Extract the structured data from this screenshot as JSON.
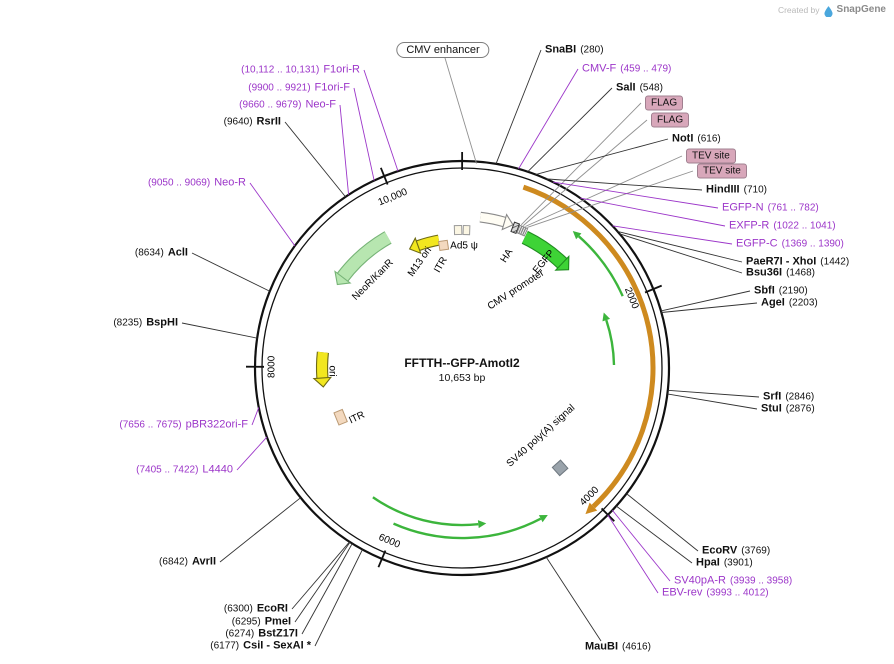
{
  "watermark": {
    "created_by": "Created by",
    "brand": "SnapGene"
  },
  "plasmid": {
    "title": "FFTTH--GFP-AmotI2",
    "size": "10,653 bp"
  },
  "badge_labels": {
    "cmv_enhancer": "CMV enhancer"
  },
  "ticks": [
    "2000",
    "4000",
    "6000",
    "8000",
    "10,000"
  ],
  "features": {
    "neor_kanr": "NeoR/KanR",
    "m13_ori": "M13 ori",
    "itr_top": "ITR",
    "ad5_psi": "Ad5 ψ",
    "ha": "HA",
    "egfp": "EGFP",
    "cmv_promoter": "CMV promoter",
    "ori": "ori",
    "itr_left": "ITR",
    "sv40_polya": "SV40 poly(A) signal"
  },
  "colors": {
    "primer": "#9c36c9",
    "enzyme": "#1a1a1a",
    "orange_arc": "#ce8a1f",
    "egfp_green": "#3ed336",
    "pale_green": "#b7e6b0",
    "yellow": "#f2e71f"
  },
  "callouts_left": [
    {
      "pos": "(10,112 .. 10,131)",
      "name": "F1ori-R",
      "kind": "primer"
    },
    {
      "pos": "(9900 .. 9921)",
      "name": "F1ori-F",
      "kind": "primer"
    },
    {
      "pos": "(9660 .. 9679)",
      "name": "Neo-F",
      "kind": "primer"
    },
    {
      "pos": "(9640)",
      "name": "RsrII",
      "kind": "enzyme"
    },
    {
      "pos": "(9050 .. 9069)",
      "name": "Neo-R",
      "kind": "primer"
    },
    {
      "pos": "(8634)",
      "name": "AclI",
      "kind": "enzyme"
    },
    {
      "pos": "(8235)",
      "name": "BspHI",
      "kind": "enzyme"
    },
    {
      "pos": "(7656 .. 7675)",
      "name": "pBR322ori-F",
      "kind": "primer"
    },
    {
      "pos": "(7405 .. 7422)",
      "name": "L4440",
      "kind": "primer"
    },
    {
      "pos": "(6842)",
      "name": "AvrII",
      "kind": "enzyme"
    },
    {
      "pos": "(6300)",
      "name": "EcoRI",
      "kind": "enzyme"
    },
    {
      "pos": "(6295)",
      "name": "PmeI",
      "kind": "enzyme"
    },
    {
      "pos": "(6274)",
      "name": "BstZ17I",
      "kind": "enzyme"
    },
    {
      "pos": "(6177)",
      "name": "CsiI - SexAI *",
      "kind": "enzyme"
    }
  ],
  "callouts_right": [
    {
      "name": "SnaBI",
      "pos": "(280)",
      "kind": "enzyme"
    },
    {
      "name": "CMV-F",
      "pos": "(459 .. 479)",
      "kind": "primer"
    },
    {
      "name": "SalI",
      "pos": "(548)",
      "kind": "enzyme"
    },
    {
      "name": "FLAG",
      "pos": "",
      "kind": "badge"
    },
    {
      "name": "FLAG",
      "pos": "",
      "kind": "badge"
    },
    {
      "name": "NotI",
      "pos": "(616)",
      "kind": "enzyme"
    },
    {
      "name": "TEV site",
      "pos": "",
      "kind": "badge"
    },
    {
      "name": "TEV site",
      "pos": "",
      "kind": "badge"
    },
    {
      "name": "HindIII",
      "pos": "(710)",
      "kind": "enzyme"
    },
    {
      "name": "EGFP-N",
      "pos": "(761 .. 782)",
      "kind": "primer"
    },
    {
      "name": "EXFP-R",
      "pos": "(1022 .. 1041)",
      "kind": "primer"
    },
    {
      "name": "EGFP-C",
      "pos": "(1369 .. 1390)",
      "kind": "primer"
    },
    {
      "name": "PaeR7I - XhoI",
      "pos": "(1442)",
      "kind": "enzyme"
    },
    {
      "name": "Bsu36I",
      "pos": "(1468)",
      "kind": "enzyme"
    },
    {
      "name": "SbfI",
      "pos": "(2190)",
      "kind": "enzyme"
    },
    {
      "name": "AgeI",
      "pos": "(2203)",
      "kind": "enzyme"
    },
    {
      "name": "SrfI",
      "pos": "(2846)",
      "kind": "enzyme"
    },
    {
      "name": "StuI",
      "pos": "(2876)",
      "kind": "enzyme"
    },
    {
      "name": "EcoRV",
      "pos": "(3769)",
      "kind": "enzyme"
    },
    {
      "name": "HpaI",
      "pos": "(3901)",
      "kind": "enzyme"
    },
    {
      "name": "SV40pA-R",
      "pos": "(3939 .. 3958)",
      "kind": "primer"
    },
    {
      "name": "EBV-rev",
      "pos": "(3993 .. 4012)",
      "kind": "primer"
    },
    {
      "name": "MauBI",
      "pos": "(4616)",
      "kind": "enzyme"
    }
  ]
}
